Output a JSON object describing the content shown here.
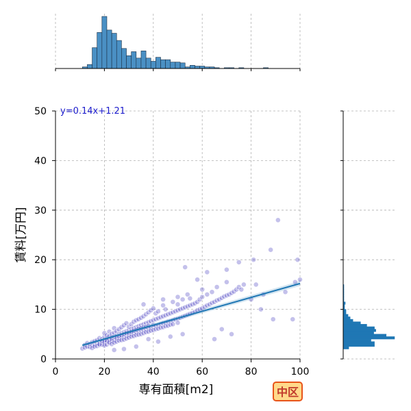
{
  "chart_data": {
    "type": "scatter",
    "xlabel": "専有面積[m2]",
    "ylabel": "賃料[万円]",
    "xlim": [
      0,
      100
    ],
    "ylim": [
      0,
      50
    ],
    "x_ticks": [
      0,
      20,
      40,
      60,
      80,
      100
    ],
    "y_ticks": [
      0,
      10,
      20,
      30,
      40,
      50
    ],
    "grid": true,
    "annotation": "y=0.14x+1.21",
    "badge": "中区",
    "colors": {
      "points": "#2a1fb8",
      "regression": "#1f77b4",
      "hist_fill": "#4a90c4",
      "annotation": "#1a1acc",
      "badge_fill": "#ffd98a",
      "badge_stroke": "#e8541a",
      "badge_text": "#c0392b"
    },
    "regression": {
      "slope": 0.14,
      "intercept": 1.21,
      "x_range": [
        11,
        100
      ]
    },
    "x_hist": {
      "bin_edges_start": 11,
      "bin_width": 2,
      "counts": [
        2,
        5,
        26,
        45,
        65,
        48,
        44,
        35,
        25,
        16,
        21,
        13,
        22,
        13,
        9,
        14,
        11,
        11,
        8,
        8,
        7,
        2,
        4,
        3,
        3,
        2,
        2,
        1,
        0,
        1,
        1,
        0,
        1,
        0,
        0,
        0,
        0,
        1,
        0,
        0,
        0,
        0,
        0,
        0
      ]
    },
    "y_hist": {
      "bin_edges_start": 1,
      "bin_width": 0.5,
      "counts": [
        0,
        0,
        8,
        45,
        45,
        40,
        74,
        62,
        44,
        47,
        45,
        34,
        25,
        14,
        10,
        7,
        4,
        4,
        2,
        2,
        3,
        1,
        1,
        1,
        1,
        1,
        1,
        1
      ]
    },
    "points": [
      [
        11,
        2.1
      ],
      [
        12,
        2.8
      ],
      [
        12,
        2.3
      ],
      [
        13,
        2.5
      ],
      [
        13,
        3.2
      ],
      [
        14,
        2.4
      ],
      [
        14,
        3.0
      ],
      [
        15,
        2.7
      ],
      [
        15,
        3.4
      ],
      [
        15,
        2.2
      ],
      [
        16,
        2.9
      ],
      [
        16,
        3.6
      ],
      [
        16,
        2.5
      ],
      [
        17,
        3.1
      ],
      [
        17,
        3.8
      ],
      [
        17,
        2.6
      ],
      [
        18,
        2.8
      ],
      [
        18,
        3.5
      ],
      [
        18,
        4.2
      ],
      [
        18,
        3.0
      ],
      [
        19,
        3.3
      ],
      [
        19,
        2.9
      ],
      [
        19,
        4.0
      ],
      [
        19,
        3.6
      ],
      [
        20,
        3.1
      ],
      [
        20,
        3.8
      ],
      [
        20,
        4.5
      ],
      [
        20,
        2.7
      ],
      [
        20,
        3.4
      ],
      [
        20,
        5.2
      ],
      [
        21,
        3.5
      ],
      [
        21,
        4.1
      ],
      [
        21,
        2.9
      ],
      [
        21,
        4.8
      ],
      [
        21,
        3.7
      ],
      [
        22,
        3.2
      ],
      [
        22,
        3.9
      ],
      [
        22,
        4.6
      ],
      [
        22,
        3.4
      ],
      [
        22,
        5.5
      ],
      [
        23,
        3.6
      ],
      [
        23,
        4.3
      ],
      [
        23,
        3.0
      ],
      [
        23,
        5.0
      ],
      [
        23,
        4.0
      ],
      [
        24,
        3.8
      ],
      [
        24,
        4.5
      ],
      [
        24,
        3.3
      ],
      [
        24,
        5.3
      ],
      [
        24,
        6.2
      ],
      [
        25,
        4.0
      ],
      [
        25,
        4.7
      ],
      [
        25,
        3.5
      ],
      [
        25,
        5.6
      ],
      [
        25,
        4.2
      ],
      [
        26,
        4.2
      ],
      [
        26,
        3.7
      ],
      [
        26,
        5.0
      ],
      [
        26,
        6.0
      ],
      [
        26,
        4.6
      ],
      [
        27,
        4.4
      ],
      [
        27,
        5.2
      ],
      [
        27,
        3.8
      ],
      [
        27,
        6.4
      ],
      [
        27,
        4.8
      ],
      [
        28,
        4.5
      ],
      [
        28,
        5.4
      ],
      [
        28,
        3.9
      ],
      [
        28,
        6.8
      ],
      [
        28,
        5.0
      ],
      [
        29,
        4.7
      ],
      [
        29,
        5.6
      ],
      [
        29,
        4.1
      ],
      [
        29,
        7.2
      ],
      [
        29,
        5.2
      ],
      [
        30,
        4.9
      ],
      [
        30,
        5.8
      ],
      [
        30,
        4.3
      ],
      [
        30,
        6.5
      ],
      [
        30,
        5.3
      ],
      [
        31,
        5.0
      ],
      [
        31,
        6.0
      ],
      [
        31,
        4.5
      ],
      [
        31,
        7.0
      ],
      [
        31,
        5.5
      ],
      [
        32,
        5.2
      ],
      [
        32,
        6.2
      ],
      [
        32,
        4.6
      ],
      [
        32,
        7.5
      ],
      [
        32,
        5.7
      ],
      [
        33,
        5.4
      ],
      [
        33,
        6.4
      ],
      [
        33,
        4.8
      ],
      [
        33,
        7.8
      ],
      [
        33,
        5.9
      ],
      [
        34,
        5.5
      ],
      [
        34,
        6.6
      ],
      [
        34,
        4.9
      ],
      [
        34,
        8.0
      ],
      [
        34,
        6.1
      ],
      [
        35,
        5.7
      ],
      [
        35,
        6.8
      ],
      [
        35,
        5.0
      ],
      [
        35,
        8.3
      ],
      [
        35,
        6.2
      ],
      [
        36,
        5.9
      ],
      [
        36,
        7.0
      ],
      [
        36,
        5.2
      ],
      [
        36,
        8.6
      ],
      [
        36,
        6.4
      ],
      [
        37,
        6.0
      ],
      [
        37,
        7.2
      ],
      [
        37,
        5.4
      ],
      [
        37,
        9.0
      ],
      [
        37,
        6.5
      ],
      [
        38,
        6.2
      ],
      [
        38,
        7.4
      ],
      [
        38,
        5.5
      ],
      [
        38,
        9.4
      ],
      [
        38,
        6.7
      ],
      [
        39,
        6.3
      ],
      [
        39,
        7.6
      ],
      [
        39,
        5.7
      ],
      [
        39,
        9.8
      ],
      [
        40,
        6.5
      ],
      [
        40,
        7.8
      ],
      [
        40,
        5.8
      ],
      [
        40,
        10.2
      ],
      [
        40,
        6.9
      ],
      [
        41,
        6.7
      ],
      [
        41,
        8.0
      ],
      [
        41,
        6.0
      ],
      [
        41,
        9.2
      ],
      [
        42,
        6.8
      ],
      [
        42,
        8.2
      ],
      [
        42,
        6.1
      ],
      [
        42,
        9.6
      ],
      [
        43,
        7.0
      ],
      [
        43,
        8.4
      ],
      [
        43,
        6.3
      ],
      [
        44,
        7.2
      ],
      [
        44,
        8.6
      ],
      [
        44,
        6.4
      ],
      [
        44,
        10.8
      ],
      [
        45,
        7.3
      ],
      [
        45,
        8.8
      ],
      [
        45,
        6.6
      ],
      [
        45,
        10.0
      ],
      [
        46,
        7.5
      ],
      [
        46,
        9.0
      ],
      [
        46,
        6.7
      ],
      [
        47,
        7.6
      ],
      [
        47,
        9.2
      ],
      [
        47,
        6.9
      ],
      [
        48,
        7.8
      ],
      [
        48,
        9.4
      ],
      [
        48,
        7.0
      ],
      [
        48,
        11.5
      ],
      [
        49,
        8.0
      ],
      [
        49,
        9.6
      ],
      [
        50,
        8.1
      ],
      [
        50,
        9.8
      ],
      [
        50,
        7.3
      ],
      [
        50,
        11.0
      ],
      [
        50,
        12.5
      ],
      [
        51,
        8.3
      ],
      [
        51,
        10.0
      ],
      [
        52,
        8.5
      ],
      [
        52,
        10.2
      ],
      [
        52,
        12.0
      ],
      [
        53,
        8.7
      ],
      [
        53,
        10.4
      ],
      [
        54,
        8.9
      ],
      [
        54,
        10.6
      ],
      [
        54,
        13.0
      ],
      [
        55,
        9.1
      ],
      [
        55,
        10.8
      ],
      [
        55,
        12.2
      ],
      [
        56,
        9.3
      ],
      [
        56,
        11.0
      ],
      [
        57,
        9.5
      ],
      [
        57,
        11.2
      ],
      [
        58,
        9.8
      ],
      [
        58,
        11.5
      ],
      [
        59,
        10.0
      ],
      [
        59,
        12.0
      ],
      [
        60,
        10.2
      ],
      [
        60,
        12.5
      ],
      [
        60,
        14.0
      ],
      [
        61,
        10.5
      ],
      [
        62,
        10.8
      ],
      [
        62,
        13.0
      ],
      [
        63,
        11.0
      ],
      [
        64,
        11.3
      ],
      [
        64,
        13.5
      ],
      [
        65,
        11.5
      ],
      [
        66,
        11.8
      ],
      [
        66,
        14.5
      ],
      [
        67,
        12.0
      ],
      [
        68,
        12.3
      ],
      [
        69,
        12.6
      ],
      [
        70,
        12.8
      ],
      [
        70,
        15.5
      ],
      [
        71,
        13.0
      ],
      [
        72,
        13.3
      ],
      [
        73,
        13.6
      ],
      [
        74,
        14.0
      ],
      [
        75,
        14.5
      ],
      [
        76,
        14.0
      ],
      [
        77,
        15.0
      ],
      [
        53,
        18.5
      ],
      [
        62,
        17.5
      ],
      [
        75,
        19.5
      ],
      [
        81,
        20.0
      ],
      [
        88,
        22.0
      ],
      [
        91,
        28.0
      ],
      [
        99,
        20.0
      ],
      [
        100,
        16.0
      ],
      [
        89,
        8.0
      ],
      [
        97,
        8.0
      ],
      [
        80,
        12.0
      ],
      [
        82,
        15.0
      ],
      [
        85,
        13.0
      ],
      [
        94,
        13.5
      ],
      [
        98,
        15.5
      ],
      [
        84,
        10.0
      ],
      [
        68,
        6.0
      ],
      [
        72,
        5.0
      ],
      [
        65,
        4.0
      ],
      [
        52,
        5.0
      ],
      [
        47,
        4.5
      ],
      [
        42,
        3.5
      ],
      [
        38,
        4.0
      ],
      [
        33,
        2.5
      ],
      [
        28,
        2.0
      ],
      [
        24,
        1.8
      ],
      [
        36,
        11.0
      ],
      [
        44,
        12.0
      ],
      [
        58,
        16.0
      ],
      [
        70,
        18.0
      ]
    ]
  }
}
